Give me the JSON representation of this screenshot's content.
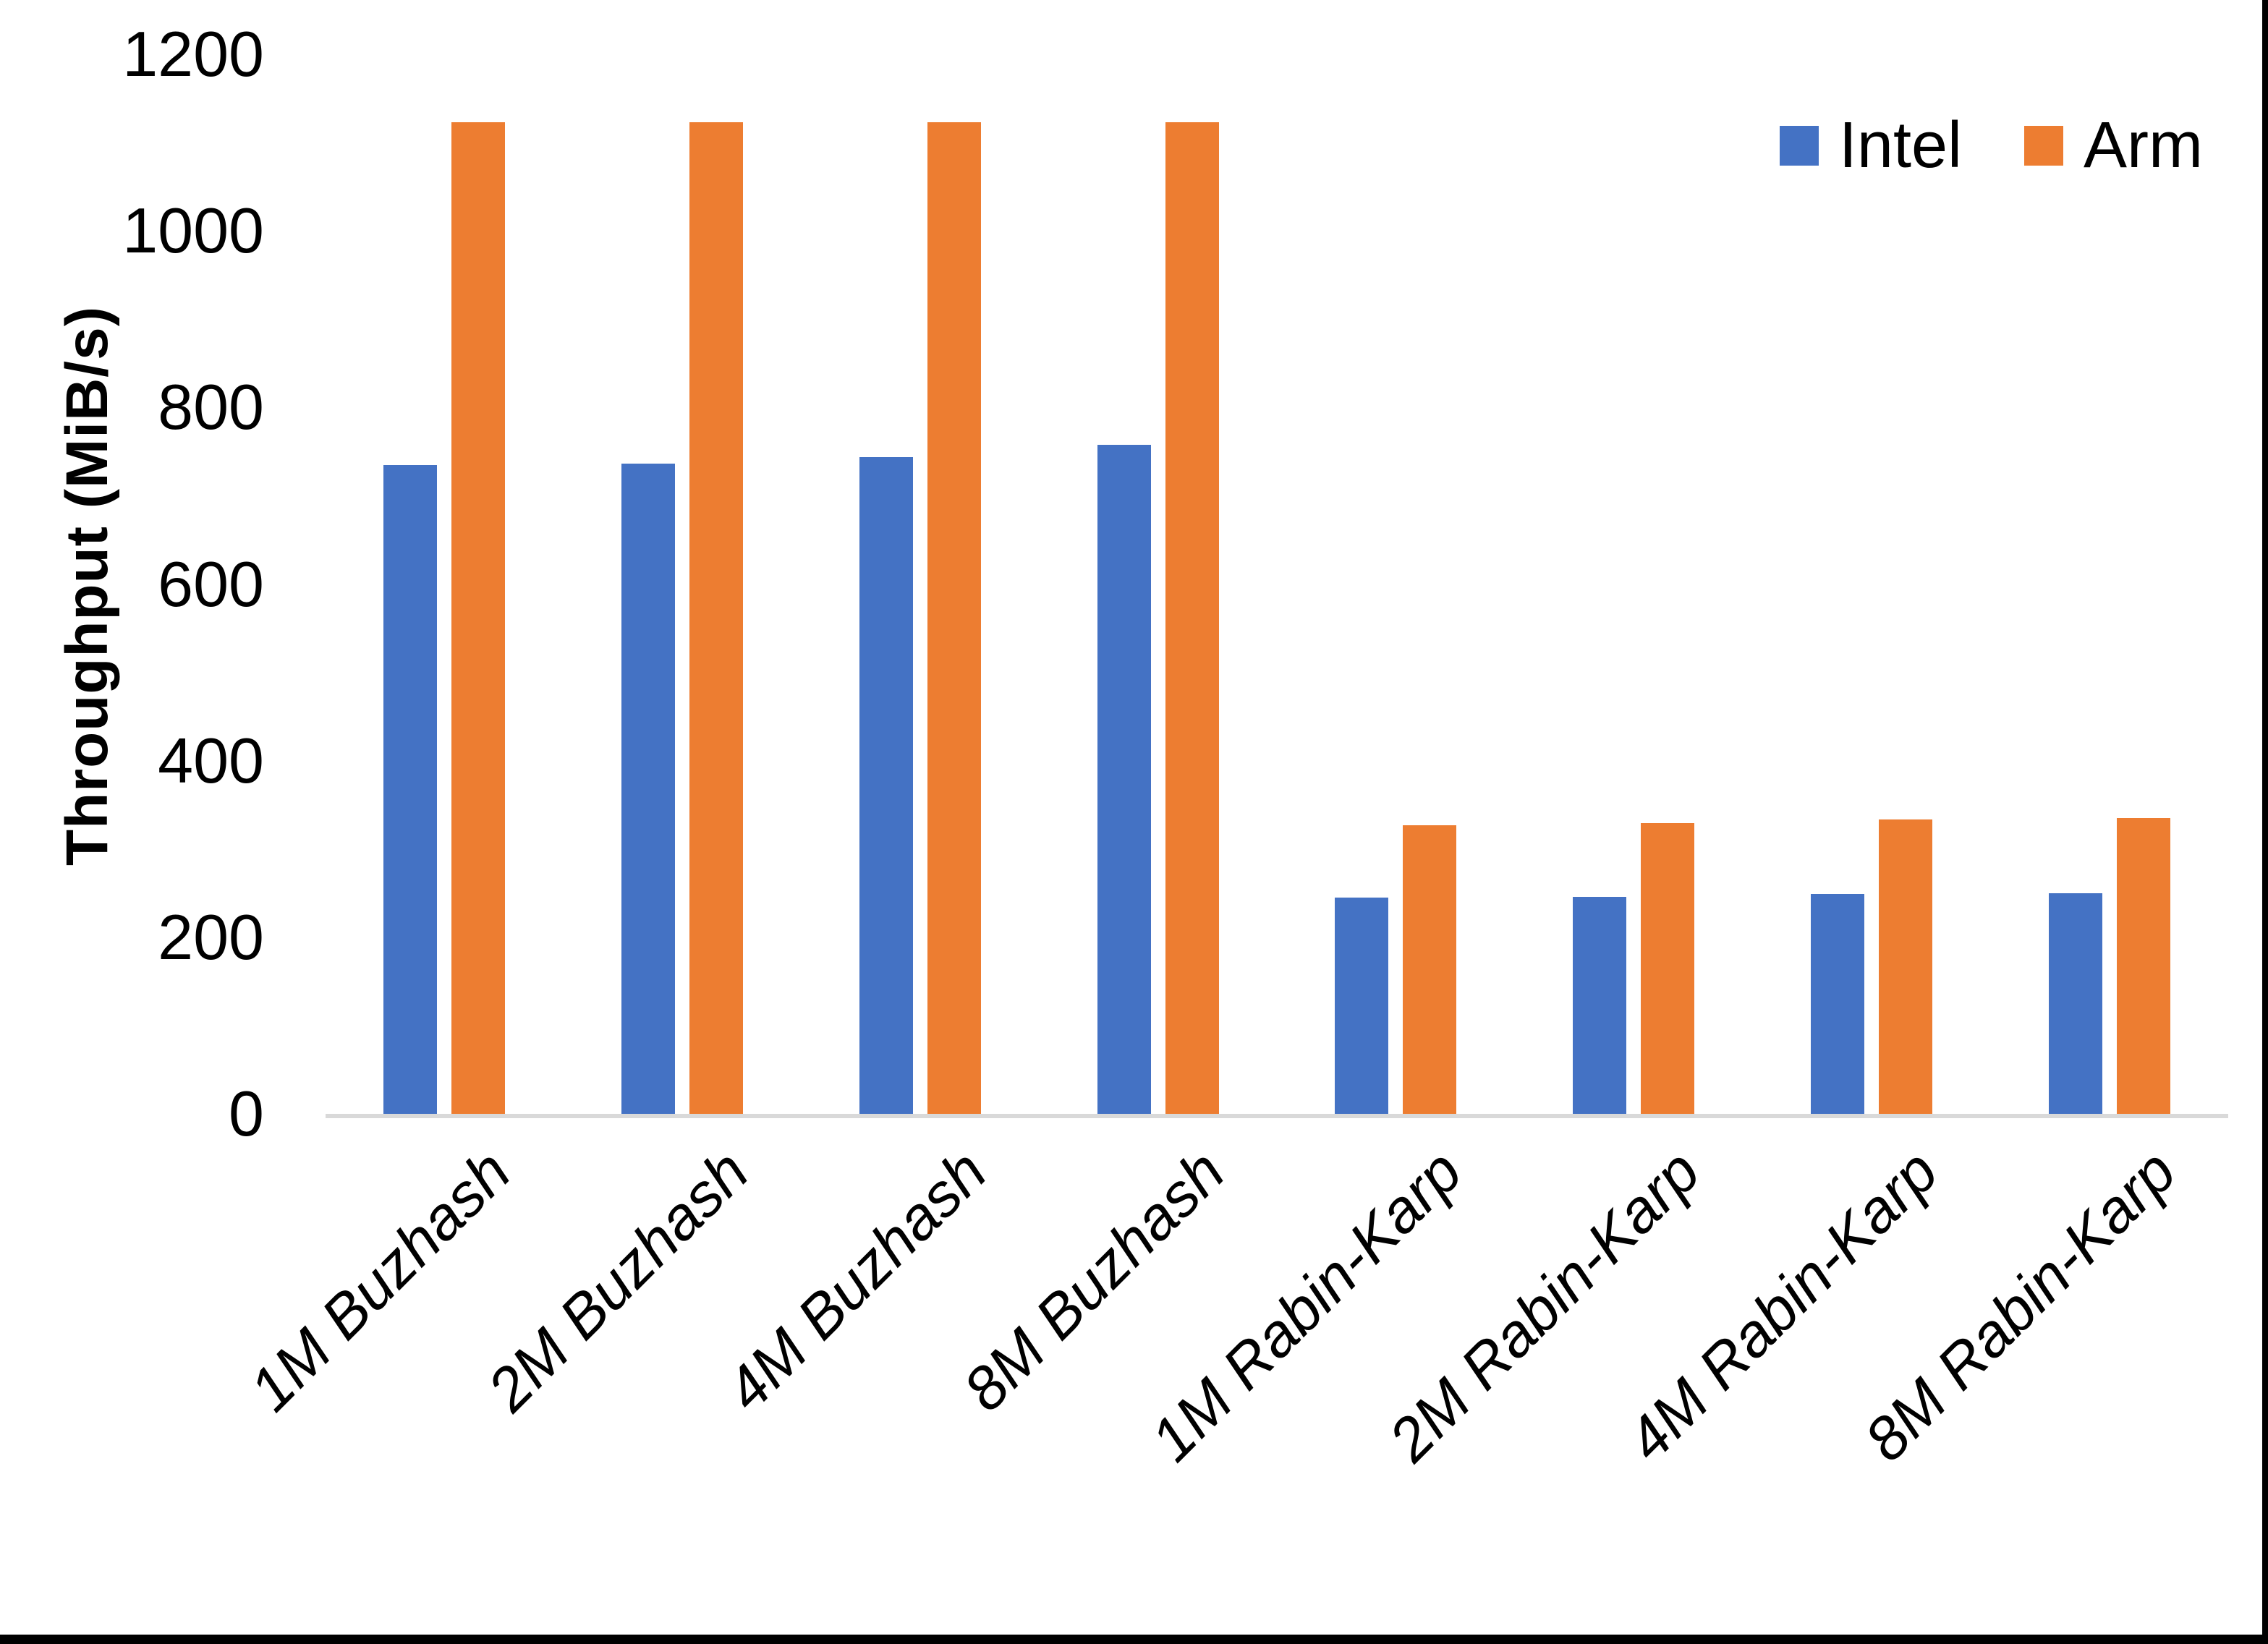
{
  "chart_data": {
    "type": "bar",
    "title": "",
    "xlabel": "",
    "ylabel": "Throughput (MiB/s)",
    "ylim": [
      0,
      1200
    ],
    "yticks": [
      0,
      200,
      400,
      600,
      800,
      1000,
      1200
    ],
    "grid": false,
    "axis_line_color": "#d9d9d9",
    "legend_position": "top-right",
    "categories": [
      "1M Buzhash",
      "2M Buzhash",
      "4M Buzhash",
      "8M Buzhash",
      "1M Rabin-Karp",
      "2M Rabin-Karp",
      "4M Rabin-Karp",
      "8M Rabin-Karp"
    ],
    "series": [
      {
        "name": "Intel",
        "color": "#4472c4",
        "values": [
          735,
          736,
          744,
          758,
          245,
          246,
          249,
          250
        ]
      },
      {
        "name": "Arm",
        "color": "#ed7d31",
        "values": [
          1123,
          1123,
          1123,
          1123,
          327,
          329,
          333,
          335
        ]
      }
    ]
  }
}
